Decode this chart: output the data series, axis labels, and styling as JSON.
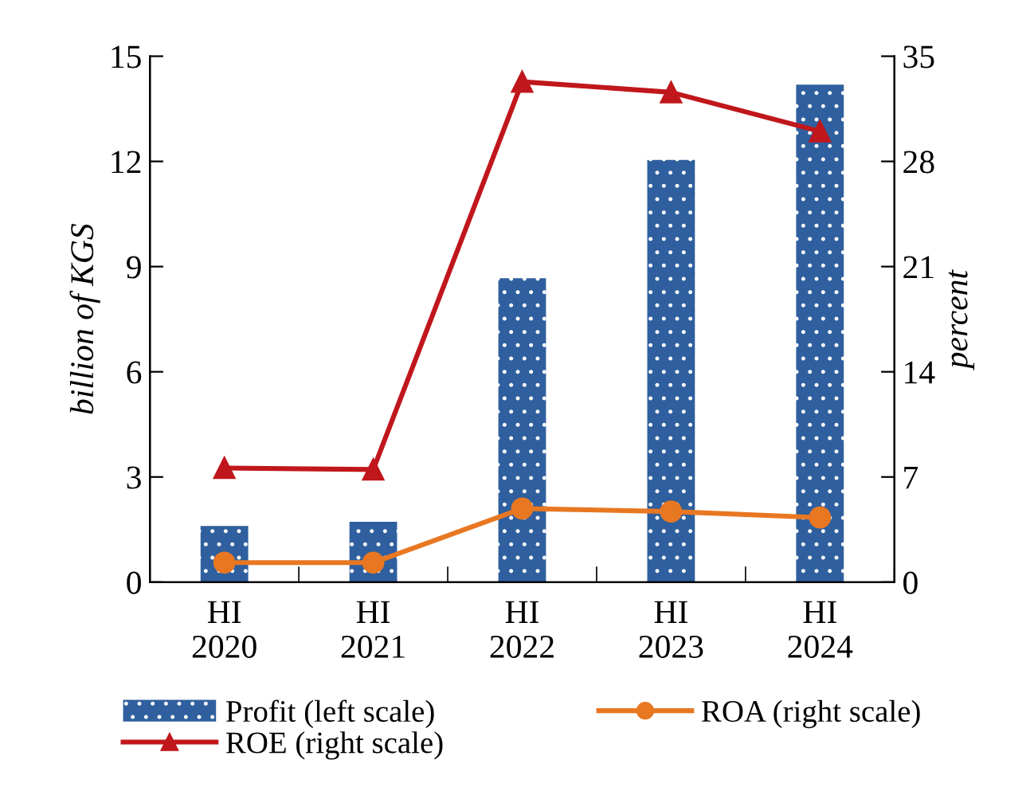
{
  "chart_data": {
    "type": "bar",
    "categories": [
      "HI\n2020",
      "HI\n2021",
      "HI\n2022",
      "HI\n2023",
      "HI\n2024"
    ],
    "ylabel": "billion of KGS",
    "y2label": "percent",
    "ylim": [
      0,
      15
    ],
    "yticks": [
      0,
      3,
      6,
      9,
      12,
      15
    ],
    "y2lim": [
      0,
      35
    ],
    "y2ticks": [
      0,
      7,
      14,
      21,
      28,
      35
    ],
    "grid": false,
    "legend": "bottom",
    "series": [
      {
        "name": "Profit (left scale)",
        "color": "#2f5f9e",
        "values": [
          1.6,
          1.72,
          8.67,
          12.04,
          14.19
        ]
      },
      {
        "name": "ROA (right scale)",
        "type": "line",
        "axis": "y2",
        "marker": "circle",
        "color": "#e87722",
        "values": [
          1.3,
          1.3,
          4.9,
          4.7,
          4.3
        ]
      },
      {
        "name": "ROE (right scale)",
        "type": "line",
        "axis": "y2",
        "marker": "triangle",
        "color": "#c0171c",
        "values": [
          7.6,
          7.5,
          33.3,
          32.6,
          30.0
        ]
      }
    ]
  }
}
